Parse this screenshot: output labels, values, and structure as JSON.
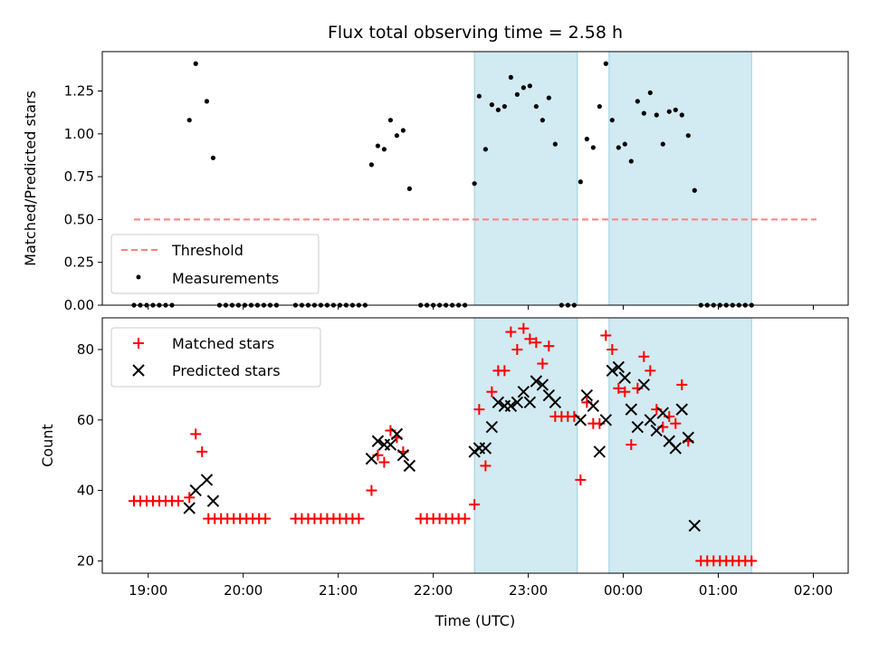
{
  "chart_data": [
    {
      "type": "scatter",
      "title": "Flux total observing time = 2.58 h",
      "xlabel": "",
      "ylabel": "Matched/Predicted stars",
      "ylim": [
        0,
        1.48
      ],
      "xlim": [
        "18:31",
        "02:22"
      ],
      "yticks": [
        "0.00",
        "0.25",
        "0.50",
        "0.75",
        "1.00",
        "1.25"
      ],
      "grid": false,
      "legend_placement": "lower-left",
      "highlight_windows": [
        [
          "22:26",
          "23:31"
        ],
        [
          "23:51",
          "01:21"
        ]
      ],
      "highlight_color": "#add8e6",
      "series": [
        {
          "name": "Threshold",
          "kind": "dashed-line",
          "color": "#ff8080",
          "x": [
            "18:51",
            "02:02"
          ],
          "y": [
            0.5,
            0.5
          ]
        },
        {
          "name": "Measurements",
          "kind": "points",
          "color": "#000000",
          "points": [
            [
              "18:51",
              0.0
            ],
            [
              "18:55",
              0.0
            ],
            [
              "18:59",
              0.0
            ],
            [
              "19:03",
              0.0
            ],
            [
              "19:07",
              0.0
            ],
            [
              "19:11",
              0.0
            ],
            [
              "19:15",
              0.0
            ],
            [
              "19:26",
              1.08
            ],
            [
              "19:30",
              1.41
            ],
            [
              "19:37",
              1.19
            ],
            [
              "19:41",
              0.86
            ],
            [
              "19:45",
              0.0
            ],
            [
              "19:49",
              0.0
            ],
            [
              "19:53",
              0.0
            ],
            [
              "19:57",
              0.0
            ],
            [
              "20:01",
              0.0
            ],
            [
              "20:05",
              0.0
            ],
            [
              "20:09",
              0.0
            ],
            [
              "20:13",
              0.0
            ],
            [
              "20:17",
              0.0
            ],
            [
              "20:21",
              0.0
            ],
            [
              "20:33",
              0.0
            ],
            [
              "20:37",
              0.0
            ],
            [
              "20:41",
              0.0
            ],
            [
              "20:45",
              0.0
            ],
            [
              "20:49",
              0.0
            ],
            [
              "20:53",
              0.0
            ],
            [
              "20:57",
              0.0
            ],
            [
              "21:01",
              0.0
            ],
            [
              "21:05",
              0.0
            ],
            [
              "21:09",
              0.0
            ],
            [
              "21:13",
              0.0
            ],
            [
              "21:17",
              0.0
            ],
            [
              "21:21",
              0.82
            ],
            [
              "21:25",
              0.93
            ],
            [
              "21:29",
              0.91
            ],
            [
              "21:33",
              1.08
            ],
            [
              "21:37",
              0.99
            ],
            [
              "21:41",
              1.02
            ],
            [
              "21:45",
              0.68
            ],
            [
              "21:52",
              0.0
            ],
            [
              "21:56",
              0.0
            ],
            [
              "22:00",
              0.0
            ],
            [
              "22:04",
              0.0
            ],
            [
              "22:08",
              0.0
            ],
            [
              "22:12",
              0.0
            ],
            [
              "22:16",
              0.0
            ],
            [
              "22:20",
              0.0
            ],
            [
              "22:26",
              0.71
            ],
            [
              "22:29",
              1.22
            ],
            [
              "22:33",
              0.91
            ],
            [
              "22:37",
              1.17
            ],
            [
              "22:41",
              1.14
            ],
            [
              "22:45",
              1.16
            ],
            [
              "22:49",
              1.33
            ],
            [
              "22:53",
              1.23
            ],
            [
              "22:57",
              1.27
            ],
            [
              "23:01",
              1.28
            ],
            [
              "23:05",
              1.16
            ],
            [
              "23:09",
              1.08
            ],
            [
              "23:13",
              1.21
            ],
            [
              "23:17",
              0.94
            ],
            [
              "23:21",
              0.0
            ],
            [
              "23:25",
              0.0
            ],
            [
              "23:29",
              0.0
            ],
            [
              "23:33",
              0.72
            ],
            [
              "23:37",
              0.97
            ],
            [
              "23:41",
              0.92
            ],
            [
              "23:45",
              1.16
            ],
            [
              "23:49",
              1.41
            ],
            [
              "23:53",
              1.08
            ],
            [
              "23:57",
              0.92
            ],
            [
              "00:01",
              0.94
            ],
            [
              "00:05",
              0.84
            ],
            [
              "00:09",
              1.19
            ],
            [
              "00:13",
              1.12
            ],
            [
              "00:17",
              1.24
            ],
            [
              "00:21",
              1.11
            ],
            [
              "00:25",
              0.94
            ],
            [
              "00:29",
              1.13
            ],
            [
              "00:33",
              1.14
            ],
            [
              "00:37",
              1.11
            ],
            [
              "00:41",
              0.99
            ],
            [
              "00:45",
              0.67
            ],
            [
              "00:49",
              0.0
            ],
            [
              "00:53",
              0.0
            ],
            [
              "00:57",
              0.0
            ],
            [
              "01:01",
              0.0
            ],
            [
              "01:05",
              0.0
            ],
            [
              "01:09",
              0.0
            ],
            [
              "01:13",
              0.0
            ],
            [
              "01:17",
              0.0
            ],
            [
              "01:21",
              0.0
            ]
          ]
        }
      ]
    },
    {
      "type": "scatter",
      "xlabel": "Time (UTC)",
      "ylabel": "Count",
      "ylim": [
        16.5,
        89
      ],
      "xlim": [
        "18:31",
        "02:22"
      ],
      "yticks": [
        "20",
        "40",
        "60",
        "80"
      ],
      "xticks": [
        "19:00",
        "20:00",
        "21:00",
        "22:00",
        "23:00",
        "00:00",
        "01:00",
        "02:00"
      ],
      "grid": false,
      "legend_placement": "upper-left",
      "highlight_windows": [
        [
          "22:26",
          "23:31"
        ],
        [
          "23:51",
          "01:21"
        ]
      ],
      "highlight_color": "#add8e6",
      "series": [
        {
          "name": "Matched stars",
          "marker": "plus",
          "color": "#ff0000",
          "points": [
            [
              "18:51",
              37
            ],
            [
              "18:55",
              37
            ],
            [
              "18:59",
              37
            ],
            [
              "19:03",
              37
            ],
            [
              "19:07",
              37
            ],
            [
              "19:11",
              37
            ],
            [
              "19:15",
              37
            ],
            [
              "19:19",
              37
            ],
            [
              "19:26",
              38
            ],
            [
              "19:30",
              56
            ],
            [
              "19:34",
              51
            ],
            [
              "19:38",
              32
            ],
            [
              "19:42",
              32
            ],
            [
              "19:46",
              32
            ],
            [
              "19:50",
              32
            ],
            [
              "19:54",
              32
            ],
            [
              "19:58",
              32
            ],
            [
              "20:02",
              32
            ],
            [
              "20:06",
              32
            ],
            [
              "20:10",
              32
            ],
            [
              "20:14",
              32
            ],
            [
              "20:33",
              32
            ],
            [
              "20:37",
              32
            ],
            [
              "20:41",
              32
            ],
            [
              "20:45",
              32
            ],
            [
              "20:49",
              32
            ],
            [
              "20:53",
              32
            ],
            [
              "20:57",
              32
            ],
            [
              "21:01",
              32
            ],
            [
              "21:05",
              32
            ],
            [
              "21:09",
              32
            ],
            [
              "21:13",
              32
            ],
            [
              "21:21",
              40
            ],
            [
              "21:25",
              50
            ],
            [
              "21:29",
              48
            ],
            [
              "21:33",
              57
            ],
            [
              "21:37",
              55
            ],
            [
              "21:41",
              51
            ],
            [
              "21:52",
              32
            ],
            [
              "21:56",
              32
            ],
            [
              "22:00",
              32
            ],
            [
              "22:04",
              32
            ],
            [
              "22:08",
              32
            ],
            [
              "22:12",
              32
            ],
            [
              "22:16",
              32
            ],
            [
              "22:20",
              32
            ],
            [
              "22:26",
              36
            ],
            [
              "22:29",
              63
            ],
            [
              "22:33",
              47
            ],
            [
              "22:37",
              68
            ],
            [
              "22:41",
              74
            ],
            [
              "22:45",
              74
            ],
            [
              "22:49",
              85
            ],
            [
              "22:53",
              80
            ],
            [
              "22:57",
              86
            ],
            [
              "23:01",
              83
            ],
            [
              "23:05",
              82
            ],
            [
              "23:09",
              76
            ],
            [
              "23:13",
              81
            ],
            [
              "23:17",
              61
            ],
            [
              "23:21",
              61
            ],
            [
              "23:25",
              61
            ],
            [
              "23:29",
              61
            ],
            [
              "23:33",
              43
            ],
            [
              "23:37",
              65
            ],
            [
              "23:41",
              59
            ],
            [
              "23:45",
              59
            ],
            [
              "23:49",
              84
            ],
            [
              "23:53",
              80
            ],
            [
              "23:57",
              69
            ],
            [
              "00:01",
              68
            ],
            [
              "00:05",
              53
            ],
            [
              "00:09",
              69
            ],
            [
              "00:13",
              78
            ],
            [
              "00:17",
              74
            ],
            [
              "00:21",
              63
            ],
            [
              "00:25",
              58
            ],
            [
              "00:29",
              61
            ],
            [
              "00:33",
              59
            ],
            [
              "00:37",
              70
            ],
            [
              "00:41",
              54
            ],
            [
              "00:49",
              20
            ],
            [
              "00:53",
              20
            ],
            [
              "00:57",
              20
            ],
            [
              "01:01",
              20
            ],
            [
              "01:05",
              20
            ],
            [
              "01:09",
              20
            ],
            [
              "01:13",
              20
            ],
            [
              "01:17",
              20
            ],
            [
              "01:21",
              20
            ]
          ]
        },
        {
          "name": "Predicted stars",
          "marker": "cross",
          "color": "#000000",
          "points": [
            [
              "19:26",
              35
            ],
            [
              "19:30",
              40
            ],
            [
              "19:37",
              43
            ],
            [
              "19:41",
              37
            ],
            [
              "21:21",
              49
            ],
            [
              "21:25",
              54
            ],
            [
              "21:29",
              53
            ],
            [
              "21:33",
              53
            ],
            [
              "21:37",
              56
            ],
            [
              "21:41",
              50
            ],
            [
              "21:45",
              47
            ],
            [
              "22:26",
              51
            ],
            [
              "22:29",
              52
            ],
            [
              "22:33",
              52
            ],
            [
              "22:37",
              58
            ],
            [
              "22:41",
              65
            ],
            [
              "22:45",
              64
            ],
            [
              "22:49",
              64
            ],
            [
              "22:53",
              65
            ],
            [
              "22:57",
              68
            ],
            [
              "23:01",
              65
            ],
            [
              "23:05",
              71
            ],
            [
              "23:09",
              70
            ],
            [
              "23:13",
              67
            ],
            [
              "23:17",
              65
            ],
            [
              "23:33",
              60
            ],
            [
              "23:37",
              67
            ],
            [
              "23:41",
              64
            ],
            [
              "23:45",
              51
            ],
            [
              "23:49",
              60
            ],
            [
              "23:53",
              74
            ],
            [
              "23:57",
              75
            ],
            [
              "00:01",
              72
            ],
            [
              "00:05",
              63
            ],
            [
              "00:09",
              58
            ],
            [
              "00:13",
              70
            ],
            [
              "00:17",
              60
            ],
            [
              "00:21",
              57
            ],
            [
              "00:25",
              62
            ],
            [
              "00:29",
              54
            ],
            [
              "00:33",
              52
            ],
            [
              "00:37",
              63
            ],
            [
              "00:41",
              55
            ],
            [
              "00:45",
              30
            ]
          ]
        }
      ]
    }
  ]
}
